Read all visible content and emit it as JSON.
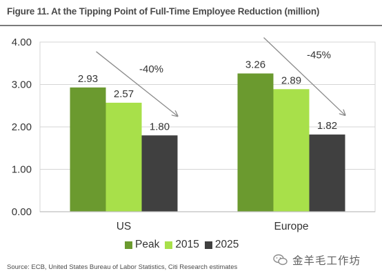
{
  "title": "Figure 11. At the Tipping Point of Full-Time Employee Reduction (million)",
  "source": "Source: ECB, United States Bureau of Labor Statistics, Citi Research estimates",
  "watermark": "金羊毛工作坊",
  "colors": {
    "Peak": "#6b9a2f",
    "2015": "#a8e04a",
    "2025": "#404040",
    "grid": "#d4d4d4",
    "arrow": "#8a8a8a"
  },
  "chart_data": {
    "type": "bar",
    "title": "Figure 11. At the Tipping Point of Full-Time Employee Reduction (million)",
    "xlabel": "",
    "ylabel": "",
    "categories": [
      "US",
      "Europe"
    ],
    "series": [
      {
        "name": "Peak",
        "values": [
          2.93,
          3.26
        ]
      },
      {
        "name": "2015",
        "values": [
          2.57,
          2.89
        ]
      },
      {
        "name": "2025",
        "values": [
          1.8,
          1.82
        ]
      }
    ],
    "data_labels": [
      [
        "2.93",
        "2.57",
        "1.80"
      ],
      [
        "3.26",
        "2.89",
        "1.82"
      ]
    ],
    "annotations": [
      "-40%",
      "-45%"
    ],
    "ylim": [
      0,
      4
    ],
    "yticks": [
      "0.00",
      "1.00",
      "2.00",
      "3.00",
      "4.00"
    ],
    "grid": true,
    "legend_position": "bottom"
  }
}
